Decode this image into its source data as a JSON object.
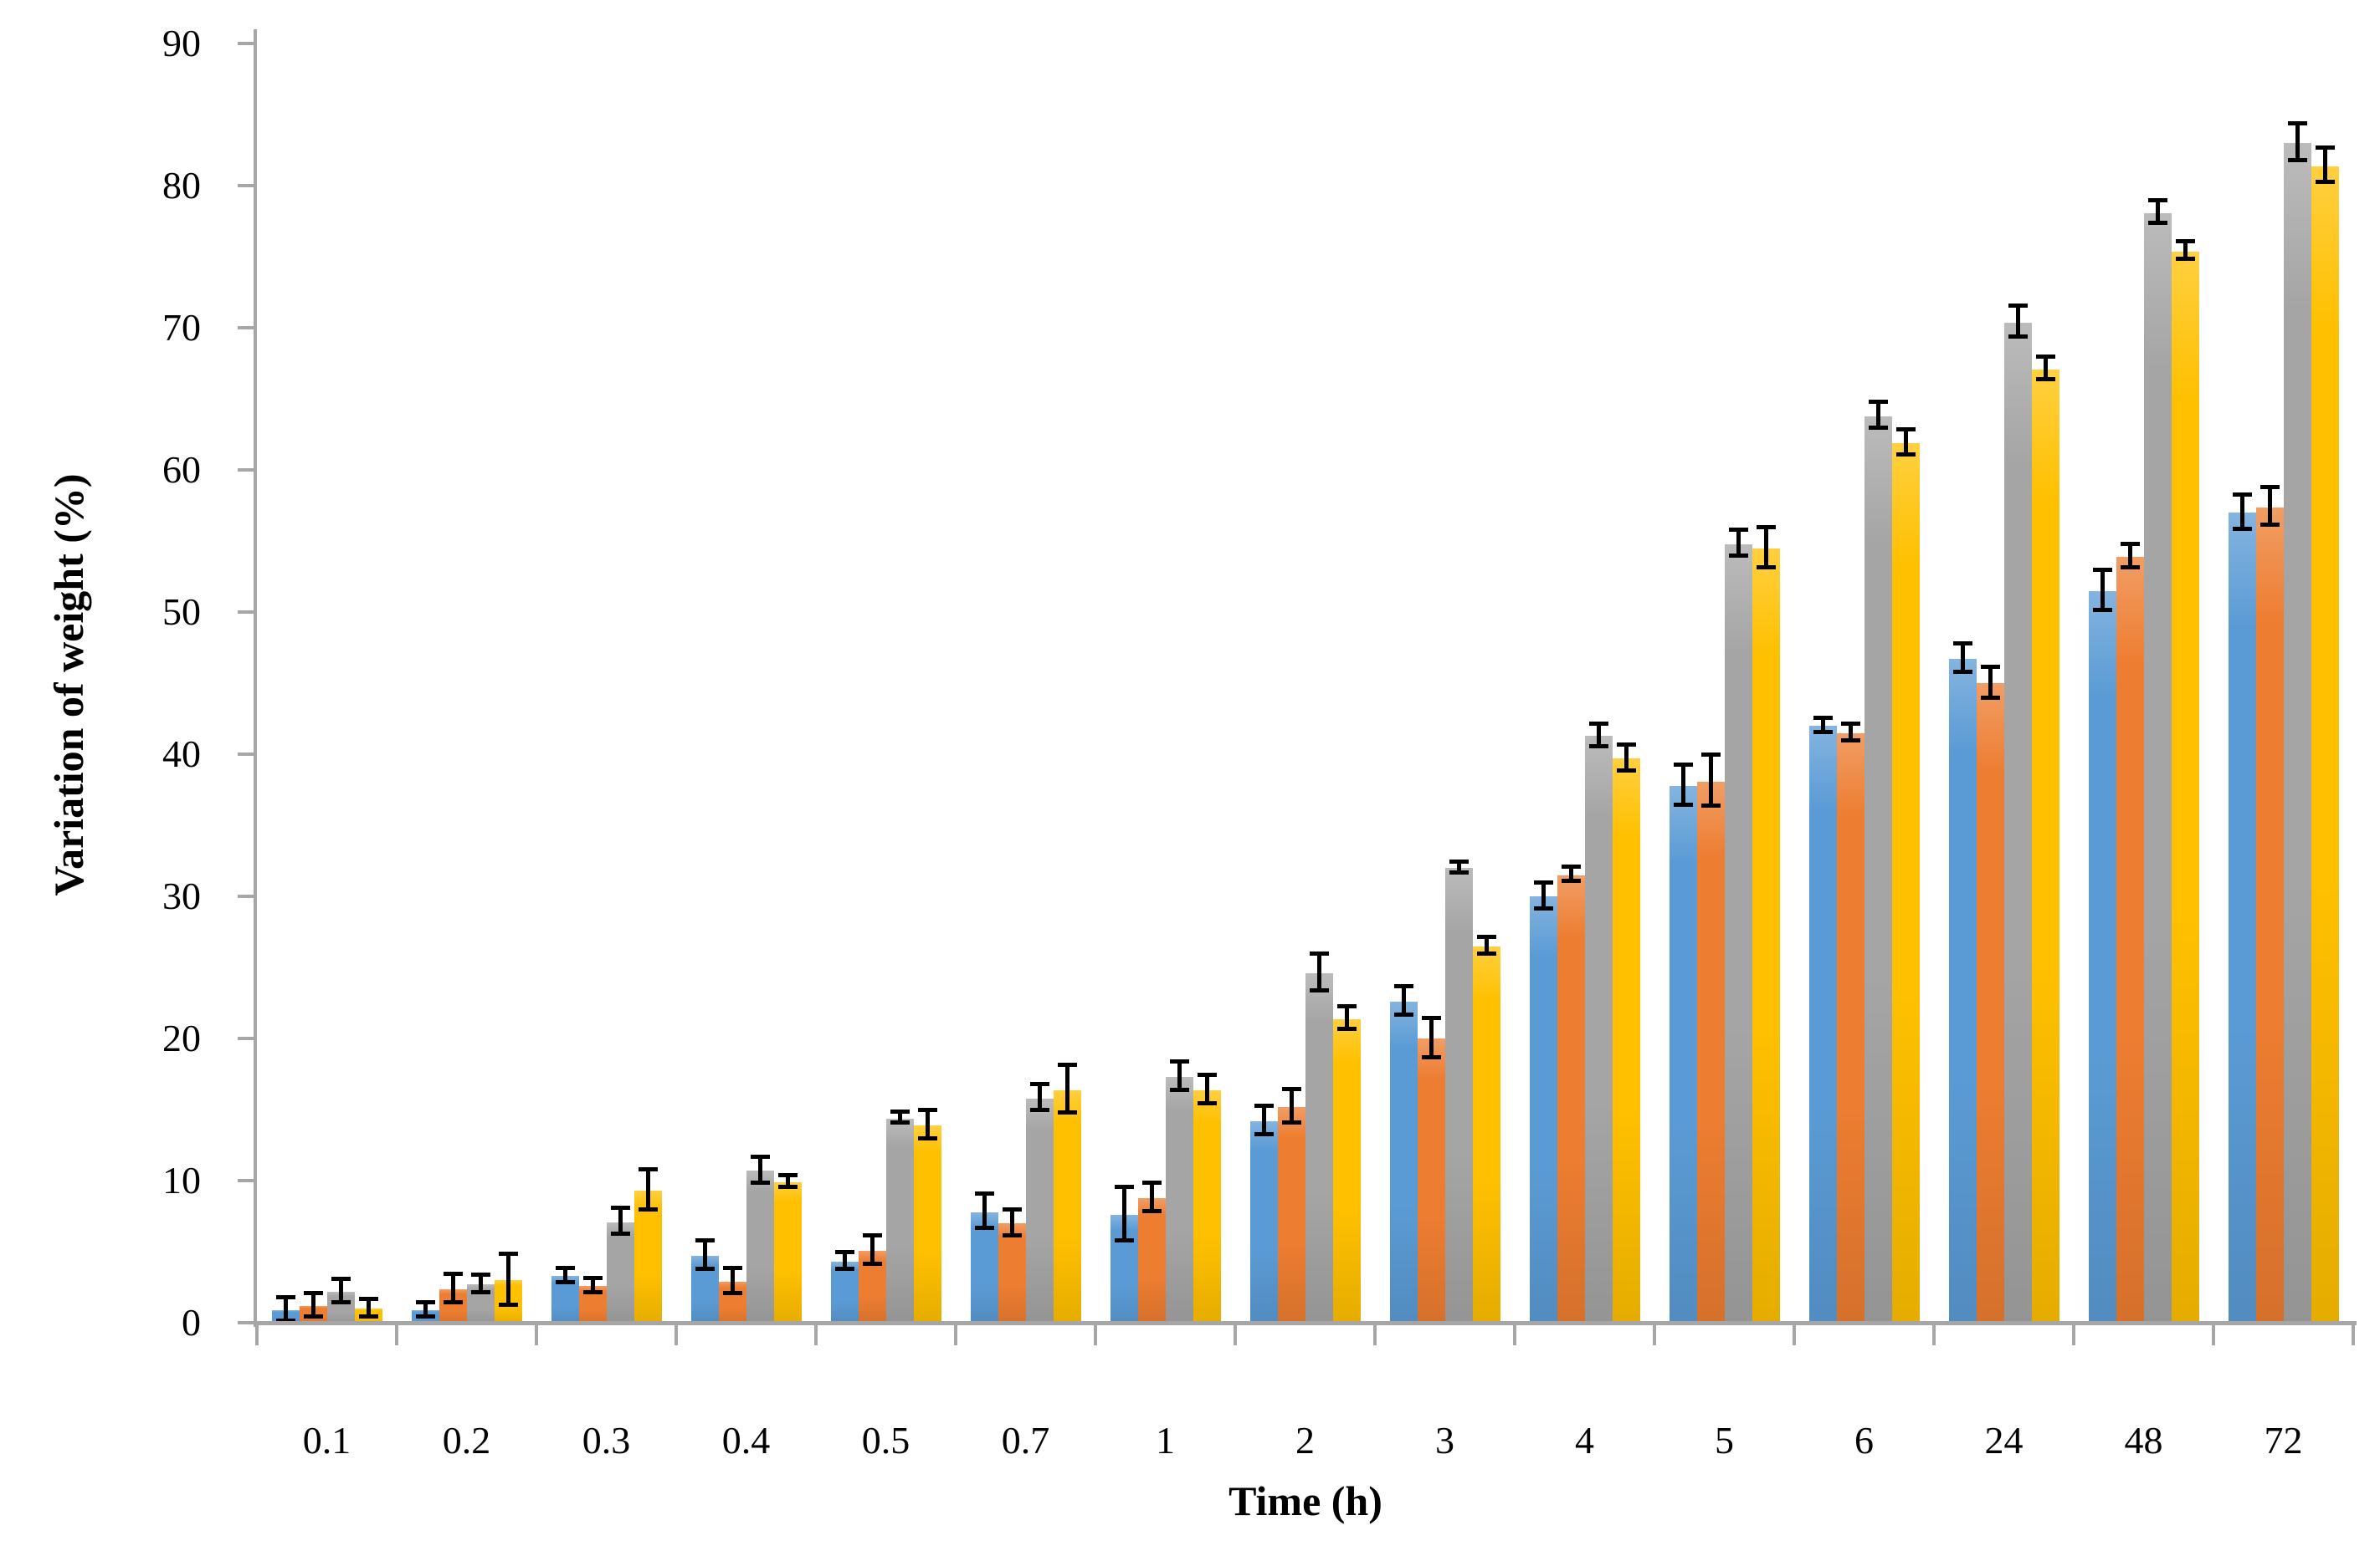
{
  "chart_data": {
    "type": "bar",
    "title": "",
    "xlabel": "Time (h)",
    "ylabel": "Variation of weight (%)",
    "categories": [
      "0.1",
      "0.2",
      "0.3",
      "0.4",
      "0.5",
      "0.7",
      "1",
      "2",
      "3",
      "4",
      "5",
      "6",
      "24",
      "48",
      "72"
    ],
    "y_ticks": [
      0,
      10,
      20,
      30,
      40,
      50,
      60,
      70,
      80,
      90
    ],
    "ylim": [
      0,
      90
    ],
    "grid": false,
    "legend_position": "none",
    "error_bars": true,
    "axis_color": "#a6a6a6",
    "error_bar_color": "#000000",
    "series": [
      {
        "name": "series-blue",
        "color": "#5B9BD5",
        "values": [
          1.0,
          1.0,
          3.4,
          4.8,
          4.4,
          7.9,
          7.7,
          14.3,
          22.7,
          30.1,
          37.9,
          42.1,
          46.8,
          51.6,
          57.1
        ],
        "errors": [
          0.8,
          0.5,
          0.5,
          1.0,
          0.6,
          1.2,
          1.9,
          1.0,
          1.0,
          0.9,
          1.4,
          0.5,
          1.0,
          1.4,
          1.2
        ]
      },
      {
        "name": "series-orange",
        "color": "#ED7D31",
        "values": [
          1.3,
          2.5,
          2.7,
          3.0,
          5.2,
          7.1,
          8.9,
          15.3,
          20.1,
          31.6,
          38.2,
          41.6,
          45.1,
          54.0,
          57.5
        ],
        "errors": [
          0.8,
          1.0,
          0.5,
          0.9,
          1.0,
          0.9,
          1.0,
          1.2,
          1.4,
          0.5,
          1.8,
          0.6,
          1.1,
          0.8,
          1.3
        ]
      },
      {
        "name": "series-gray",
        "color": "#A5A5A5",
        "values": [
          2.3,
          2.8,
          7.2,
          10.8,
          14.5,
          15.9,
          17.4,
          24.7,
          32.1,
          41.4,
          54.9,
          63.9,
          70.5,
          78.2,
          83.1
        ],
        "errors": [
          0.8,
          0.6,
          0.9,
          0.9,
          0.4,
          0.9,
          1.0,
          1.3,
          0.4,
          0.8,
          0.9,
          0.9,
          1.1,
          0.8,
          1.3
        ]
      },
      {
        "name": "series-yellow",
        "color": "#FFC000",
        "values": [
          1.1,
          3.1,
          9.4,
          10.0,
          14.0,
          16.5,
          16.5,
          21.5,
          26.6,
          39.8,
          54.6,
          62.0,
          67.2,
          75.5,
          81.5
        ],
        "errors": [
          0.6,
          1.8,
          1.4,
          0.4,
          1.0,
          1.7,
          1.0,
          0.8,
          0.6,
          0.9,
          1.4,
          0.9,
          0.8,
          0.6,
          1.2
        ]
      }
    ]
  }
}
